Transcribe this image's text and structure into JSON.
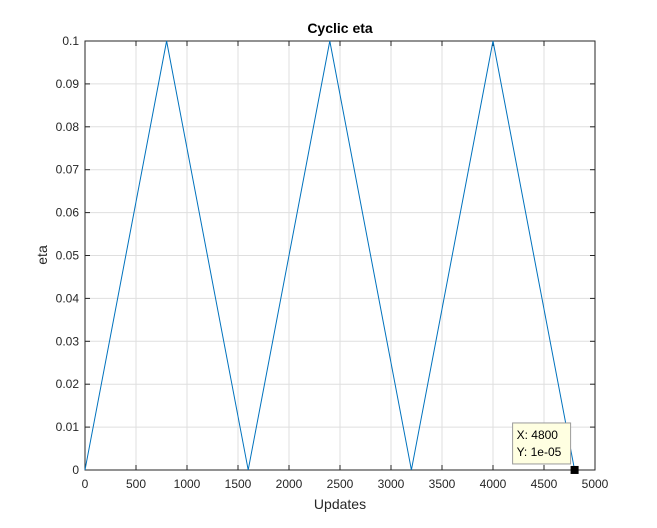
{
  "chart_data": {
    "type": "line",
    "title": "Cyclic eta",
    "xlabel": "Updates",
    "ylabel": "eta",
    "xlim": [
      0,
      5000
    ],
    "ylim": [
      0,
      0.1
    ],
    "grid": true,
    "x_ticks": [
      0,
      500,
      1000,
      1500,
      2000,
      2500,
      3000,
      3500,
      4000,
      4500,
      5000
    ],
    "y_ticks": [
      0,
      0.01,
      0.02,
      0.03,
      0.04,
      0.05,
      0.06,
      0.07,
      0.08,
      0.09,
      0.1
    ],
    "x_tick_labels": [
      "0",
      "500",
      "1000",
      "1500",
      "2000",
      "2500",
      "3000",
      "3500",
      "4000",
      "4500",
      "5000"
    ],
    "y_tick_labels": [
      "0",
      "0.01",
      "0.02",
      "0.03",
      "0.04",
      "0.05",
      "0.06",
      "0.07",
      "0.08",
      "0.09",
      "0.1"
    ],
    "series": [
      {
        "color": "#0072BD",
        "x": [
          0,
          800,
          1600,
          2400,
          3200,
          4000,
          4800
        ],
        "y": [
          1e-05,
          0.1,
          1e-05,
          0.1,
          1e-05,
          0.1,
          1e-05
        ]
      }
    ],
    "annotations": [
      {
        "type": "datatip",
        "x": 4800,
        "y": 1e-05,
        "x_text": "X: 4800",
        "y_text": "Y: 1e-05"
      }
    ]
  },
  "colors": {
    "axes_background": "#ffffff",
    "axes_border": "#262626",
    "grid": "#dfdfdf",
    "datatip_background": "#ffffe1",
    "datatip_border": "#9b9b9b",
    "datatip_marker": "#000000"
  }
}
